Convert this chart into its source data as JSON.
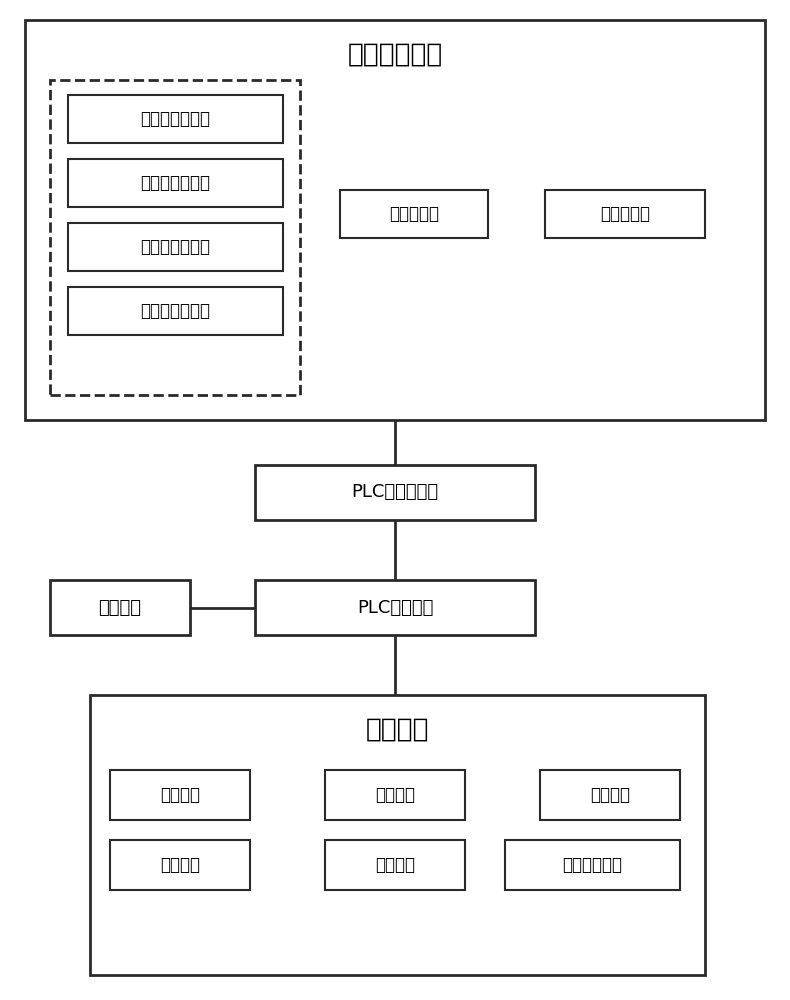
{
  "title_dcs": "数据采集系统",
  "plc_storage": "PLC数据存储器",
  "plc_control": "PLC控制系统",
  "hmi": "人机界面",
  "exec_system": "执行系统",
  "temp_sensors": [
    "物料温度传感器",
    "进氧温度传感器",
    "环境温度传感器",
    "废气温度传感器"
  ],
  "other_sensors": [
    "湿度传感器",
    "重量传感器"
  ],
  "exec_row1": [
    "搅拌系统",
    "排风系统",
    "供氧系统"
  ],
  "exec_row2": [
    "加热系统",
    "补水系统",
    "废气处理系统"
  ],
  "line_color": "#2a2a2a",
  "box_edge_color": "#2a2a2a",
  "bg_color": "#ffffff",
  "font_size_large": 19,
  "font_size_medium": 13,
  "font_size_small": 12
}
